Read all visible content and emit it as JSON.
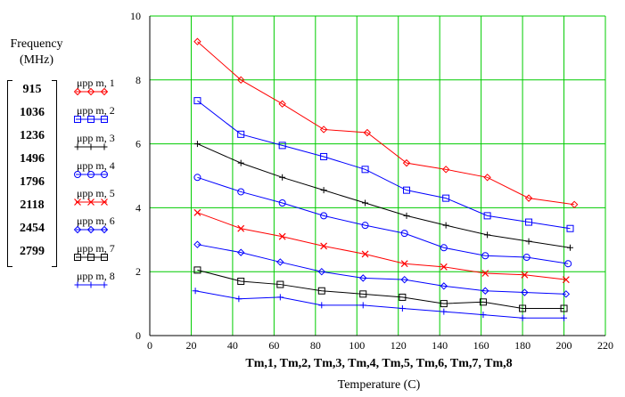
{
  "freq_title_line1": "Frequency",
  "freq_title_line2": "(MHz)",
  "frequencies": [
    "915",
    "1036",
    "1236",
    "1496",
    "1796",
    "2118",
    "2454",
    "2799"
  ],
  "xlabel_vars": "Tm,1, Tm,2, Tm,3, Tm,4, Tm,5, Tm,6, Tm,7, Tm,8",
  "chart_data": {
    "type": "line",
    "xlabel": "Temperature (C)",
    "ylabel": "",
    "xlim": [
      0,
      220
    ],
    "ylim": [
      0,
      10
    ],
    "xticks": [
      0,
      20,
      40,
      60,
      80,
      100,
      120,
      140,
      160,
      180,
      200,
      220
    ],
    "yticks": [
      0,
      2,
      4,
      6,
      8,
      10
    ],
    "grid": true,
    "legend_position": "left",
    "series": [
      {
        "name": "μpp m, 1",
        "color": "#ff0000",
        "marker": "diamond",
        "x": [
          23,
          44,
          64,
          84,
          105,
          124,
          143,
          163,
          183,
          205
        ],
        "y": [
          9.2,
          8.0,
          7.25,
          6.45,
          6.35,
          5.4,
          5.2,
          4.95,
          4.3,
          4.1
        ]
      },
      {
        "name": "μpp m, 2",
        "color": "#0000ff",
        "marker": "square",
        "x": [
          23,
          44,
          64,
          84,
          104,
          124,
          143,
          163,
          183,
          203
        ],
        "y": [
          7.35,
          6.3,
          5.95,
          5.6,
          5.2,
          4.55,
          4.3,
          3.75,
          3.55,
          3.35
        ]
      },
      {
        "name": "μpp m, 3",
        "color": "#000000",
        "marker": "plus",
        "x": [
          23,
          44,
          64,
          84,
          104,
          124,
          143,
          163,
          183,
          203
        ],
        "y": [
          6.0,
          5.4,
          4.95,
          4.55,
          4.15,
          3.75,
          3.45,
          3.15,
          2.95,
          2.75
        ]
      },
      {
        "name": "μpp m, 4",
        "color": "#0000ff",
        "marker": "circle",
        "x": [
          23,
          44,
          64,
          84,
          104,
          123,
          142,
          162,
          182,
          202
        ],
        "y": [
          4.95,
          4.5,
          4.15,
          3.75,
          3.45,
          3.2,
          2.75,
          2.5,
          2.45,
          2.25
        ]
      },
      {
        "name": "μpp m, 5",
        "color": "#ff0000",
        "marker": "cross",
        "x": [
          23,
          44,
          64,
          84,
          104,
          123,
          142,
          162,
          181,
          201
        ],
        "y": [
          3.85,
          3.35,
          3.1,
          2.8,
          2.55,
          2.25,
          2.15,
          1.95,
          1.9,
          1.75
        ]
      },
      {
        "name": "μpp m, 6",
        "color": "#0000ff",
        "marker": "diamond",
        "x": [
          23,
          44,
          63,
          83,
          103,
          123,
          142,
          162,
          181,
          201
        ],
        "y": [
          2.85,
          2.6,
          2.3,
          2.0,
          1.8,
          1.75,
          1.55,
          1.4,
          1.35,
          1.3
        ]
      },
      {
        "name": "μpp m, 7",
        "color": "#000000",
        "marker": "square",
        "x": [
          23,
          44,
          63,
          83,
          103,
          122,
          142,
          161,
          180,
          200
        ],
        "y": [
          2.05,
          1.7,
          1.6,
          1.4,
          1.3,
          1.2,
          1.0,
          1.05,
          0.85,
          0.85
        ]
      },
      {
        "name": "μpp m, 8",
        "color": "#0000ff",
        "marker": "plus",
        "x": [
          22,
          43,
          63,
          83,
          103,
          122,
          142,
          161,
          180,
          200
        ],
        "y": [
          1.4,
          1.15,
          1.2,
          0.95,
          0.95,
          0.85,
          0.75,
          0.65,
          0.55,
          0.55
        ]
      }
    ]
  }
}
